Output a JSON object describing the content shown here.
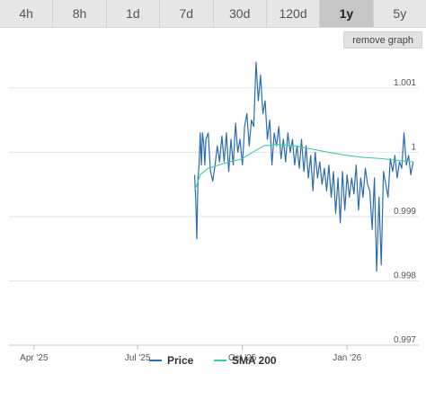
{
  "tabs": [
    {
      "label": "4h",
      "active": false
    },
    {
      "label": "8h",
      "active": false
    },
    {
      "label": "1d",
      "active": false
    },
    {
      "label": "7d",
      "active": false
    },
    {
      "label": "30d",
      "active": false
    },
    {
      "label": "120d",
      "active": false
    },
    {
      "label": "1y",
      "active": true
    },
    {
      "label": "5y",
      "active": false
    }
  ],
  "remove_graph_label": "remove graph",
  "colors": {
    "price": "#2b6cb0",
    "sma": "#3ecf9a",
    "grid": "#e6e6e6"
  },
  "chart_data": {
    "type": "line",
    "ylim": [
      0.997,
      1.0015
    ],
    "yticks": [
      {
        "value": 0.997,
        "label": "0.997"
      },
      {
        "value": 0.998,
        "label": "0.998"
      },
      {
        "value": 0.999,
        "label": "0.999"
      },
      {
        "value": 1.0,
        "label": "1"
      },
      {
        "value": 1.001,
        "label": "1.001"
      }
    ],
    "x_range": [
      "2025-03-10",
      "2026-03-05"
    ],
    "xticks": [
      {
        "date": "2025-04-01",
        "label": "Apr '25"
      },
      {
        "date": "2025-07-01",
        "label": "Jul '25"
      },
      {
        "date": "2025-10-01",
        "label": "Oct '25"
      },
      {
        "date": "2026-01-01",
        "label": "Jan '26"
      }
    ],
    "series": [
      {
        "name": "Price",
        "points": [
          [
            "2025-08-20",
            0.99965
          ],
          [
            "2025-08-21",
            0.9993
          ],
          [
            "2025-08-22",
            0.99865
          ],
          [
            "2025-08-23",
            0.9996
          ],
          [
            "2025-08-24",
            0.9998
          ],
          [
            "2025-08-25",
            1.0003
          ],
          [
            "2025-08-26",
            0.9998
          ],
          [
            "2025-08-27",
            1.0003
          ],
          [
            "2025-08-28",
            1.00015
          ],
          [
            "2025-08-29",
            0.9998
          ],
          [
            "2025-08-30",
            1.0002
          ],
          [
            "2025-09-01",
            1.0003
          ],
          [
            "2025-09-03",
            0.9997
          ],
          [
            "2025-09-05",
            0.99955
          ],
          [
            "2025-09-07",
            0.9998
          ],
          [
            "2025-09-09",
            1.0001
          ],
          [
            "2025-09-11",
            0.99985
          ],
          [
            "2025-09-13",
            1.00025
          ],
          [
            "2025-09-15",
            0.99985
          ],
          [
            "2025-09-17",
            1.0003
          ],
          [
            "2025-09-19",
            0.9997
          ],
          [
            "2025-09-21",
            1.0002
          ],
          [
            "2025-09-23",
            0.9998
          ],
          [
            "2025-09-25",
            1.00045
          ],
          [
            "2025-09-27",
            1.0
          ],
          [
            "2025-09-29",
            1.0002
          ],
          [
            "2025-10-01",
            0.9998
          ],
          [
            "2025-10-03",
            1.0004
          ],
          [
            "2025-10-05",
            1.0006
          ],
          [
            "2025-10-07",
            1.0001
          ],
          [
            "2025-10-09",
            1.0005
          ],
          [
            "2025-10-11",
            1.0004
          ],
          [
            "2025-10-13",
            1.0014
          ],
          [
            "2025-10-15",
            1.0008
          ],
          [
            "2025-10-17",
            1.0012
          ],
          [
            "2025-10-19",
            1.0006
          ],
          [
            "2025-10-21",
            1.0008
          ],
          [
            "2025-10-23",
            1.0002
          ],
          [
            "2025-10-25",
            1.0005
          ],
          [
            "2025-10-27",
            0.9998
          ],
          [
            "2025-10-29",
            1.0003
          ],
          [
            "2025-10-31",
            1.0001
          ],
          [
            "2025-11-02",
            1.0004
          ],
          [
            "2025-11-04",
            0.9999
          ],
          [
            "2025-11-06",
            1.0002
          ],
          [
            "2025-11-08",
            0.99985
          ],
          [
            "2025-11-10",
            1.0003
          ],
          [
            "2025-11-12",
            1.0
          ],
          [
            "2025-11-14",
            1.0002
          ],
          [
            "2025-11-16",
            0.9998
          ],
          [
            "2025-11-18",
            1.0001
          ],
          [
            "2025-11-20",
            0.99975
          ],
          [
            "2025-11-22",
            1.0002
          ],
          [
            "2025-11-24",
            0.9997
          ],
          [
            "2025-11-26",
            1.0001
          ],
          [
            "2025-11-28",
            0.9996
          ],
          [
            "2025-11-30",
            0.99995
          ],
          [
            "2025-12-02",
            0.9994
          ],
          [
            "2025-12-04",
            1.0
          ],
          [
            "2025-12-06",
            0.9996
          ],
          [
            "2025-12-08",
            0.99985
          ],
          [
            "2025-12-10",
            0.9995
          ],
          [
            "2025-12-12",
            0.99975
          ],
          [
            "2025-12-14",
            0.9994
          ],
          [
            "2025-12-16",
            0.9998
          ],
          [
            "2025-12-18",
            0.9993
          ],
          [
            "2025-12-20",
            0.9997
          ],
          [
            "2025-12-22",
            0.99905
          ],
          [
            "2025-12-24",
            0.9996
          ],
          [
            "2025-12-26",
            0.9989
          ],
          [
            "2025-12-28",
            0.9997
          ],
          [
            "2025-12-30",
            0.9991
          ],
          [
            "2026-01-01",
            0.99965
          ],
          [
            "2026-01-03",
            0.9993
          ],
          [
            "2026-01-05",
            0.9996
          ],
          [
            "2026-01-07",
            0.99935
          ],
          [
            "2026-01-09",
            0.9998
          ],
          [
            "2026-01-11",
            0.9991
          ],
          [
            "2026-01-13",
            0.9996
          ],
          [
            "2026-01-15",
            0.9993
          ],
          [
            "2026-01-17",
            0.99975
          ],
          [
            "2026-01-19",
            0.9995
          ],
          [
            "2026-01-21",
            0.9994
          ],
          [
            "2026-01-23",
            0.9988
          ],
          [
            "2026-01-25",
            0.9996
          ],
          [
            "2026-01-27",
            0.99815
          ],
          [
            "2026-01-29",
            0.9993
          ],
          [
            "2026-01-31",
            0.99825
          ],
          [
            "2026-02-02",
            0.9997
          ],
          [
            "2026-02-04",
            0.9995
          ],
          [
            "2026-02-06",
            0.9993
          ],
          [
            "2026-02-08",
            0.9999
          ],
          [
            "2026-02-10",
            0.9997
          ],
          [
            "2026-02-12",
            0.99995
          ],
          [
            "2026-02-14",
            0.9996
          ],
          [
            "2026-02-16",
            0.99985
          ],
          [
            "2026-02-18",
            0.99975
          ],
          [
            "2026-02-20",
            1.0003
          ],
          [
            "2026-02-22",
            0.9998
          ],
          [
            "2026-02-24",
            0.99995
          ],
          [
            "2026-02-26",
            0.99965
          ],
          [
            "2026-02-28",
            0.99985
          ]
        ]
      },
      {
        "name": "SMA 200",
        "points": [
          [
            "2025-08-20",
            0.9994
          ],
          [
            "2025-08-25",
            0.99965
          ],
          [
            "2025-09-01",
            0.99975
          ],
          [
            "2025-09-10",
            0.9998
          ],
          [
            "2025-09-20",
            0.99985
          ],
          [
            "2025-10-01",
            0.9999
          ],
          [
            "2025-10-10",
            1.0
          ],
          [
            "2025-10-20",
            1.0001
          ],
          [
            "2025-11-01",
            1.00012
          ],
          [
            "2025-11-15",
            1.0001
          ],
          [
            "2025-12-01",
            1.00005
          ],
          [
            "2025-12-15",
            1.0
          ],
          [
            "2026-01-01",
            0.99995
          ],
          [
            "2026-01-15",
            0.99992
          ],
          [
            "2026-02-01",
            0.9999
          ],
          [
            "2026-02-15",
            0.99987
          ],
          [
            "2026-02-28",
            0.99985
          ]
        ]
      }
    ],
    "legend": [
      "Price",
      "SMA 200"
    ],
    "legend_position": "bottom"
  }
}
